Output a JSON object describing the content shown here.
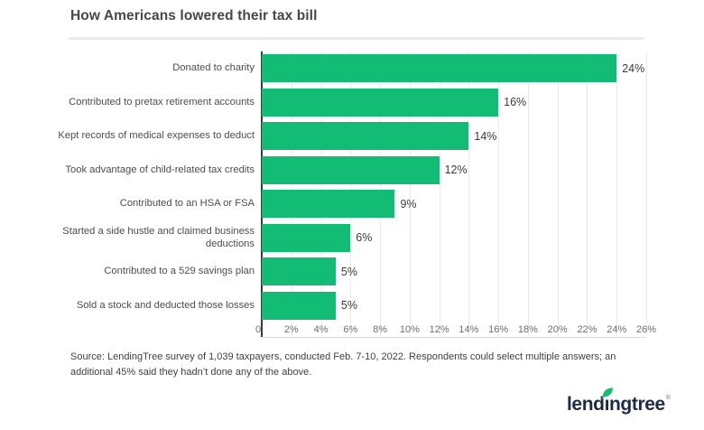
{
  "header": {
    "title": "How Americans lowered their tax bill"
  },
  "chart_data": {
    "type": "bar",
    "orientation": "horizontal",
    "title": "How Americans lowered their tax bill",
    "categories": [
      "Donated to charity",
      "Contributed to pretax retirement accounts",
      "Kept records of medical expenses to deduct",
      "Took advantage of child-related tax credits",
      "Contributed to an HSA or FSA",
      "Started a side hustle and claimed business\ndeductions",
      "Contributed to a 529 savings plan",
      "Sold a stock and deducted those losses"
    ],
    "values": [
      24,
      16,
      14,
      12,
      9,
      6,
      5,
      5
    ],
    "value_labels": [
      "24%",
      "16%",
      "14%",
      "12%",
      "9%",
      "6%",
      "5%",
      "5%"
    ],
    "x_ticks": [
      "0",
      "2%",
      "4%",
      "6%",
      "8%",
      "10%",
      "12%",
      "14%",
      "16%",
      "18%",
      "20%",
      "22%",
      "24%",
      "26%"
    ],
    "xlim": [
      0,
      26
    ],
    "xlabel": "",
    "ylabel": "",
    "grid": "vertical-light",
    "legend": false,
    "bar_color": "#12bc74",
    "axis_line_color": "#3b3b3b",
    "gridline_color": "#ebebeb"
  },
  "footer": {
    "source_text": "Source: LendingTree survey of 1,039 taxpayers, conducted Feb. 7-10, 2022. Respondents could select multiple answers; an additional 45% said they hadn’t done any of the above.",
    "logo": {
      "text": "lendıngtree",
      "registered_mark": "®",
      "navy": "#1d2b45",
      "leaf_green": "#14c06e"
    }
  }
}
